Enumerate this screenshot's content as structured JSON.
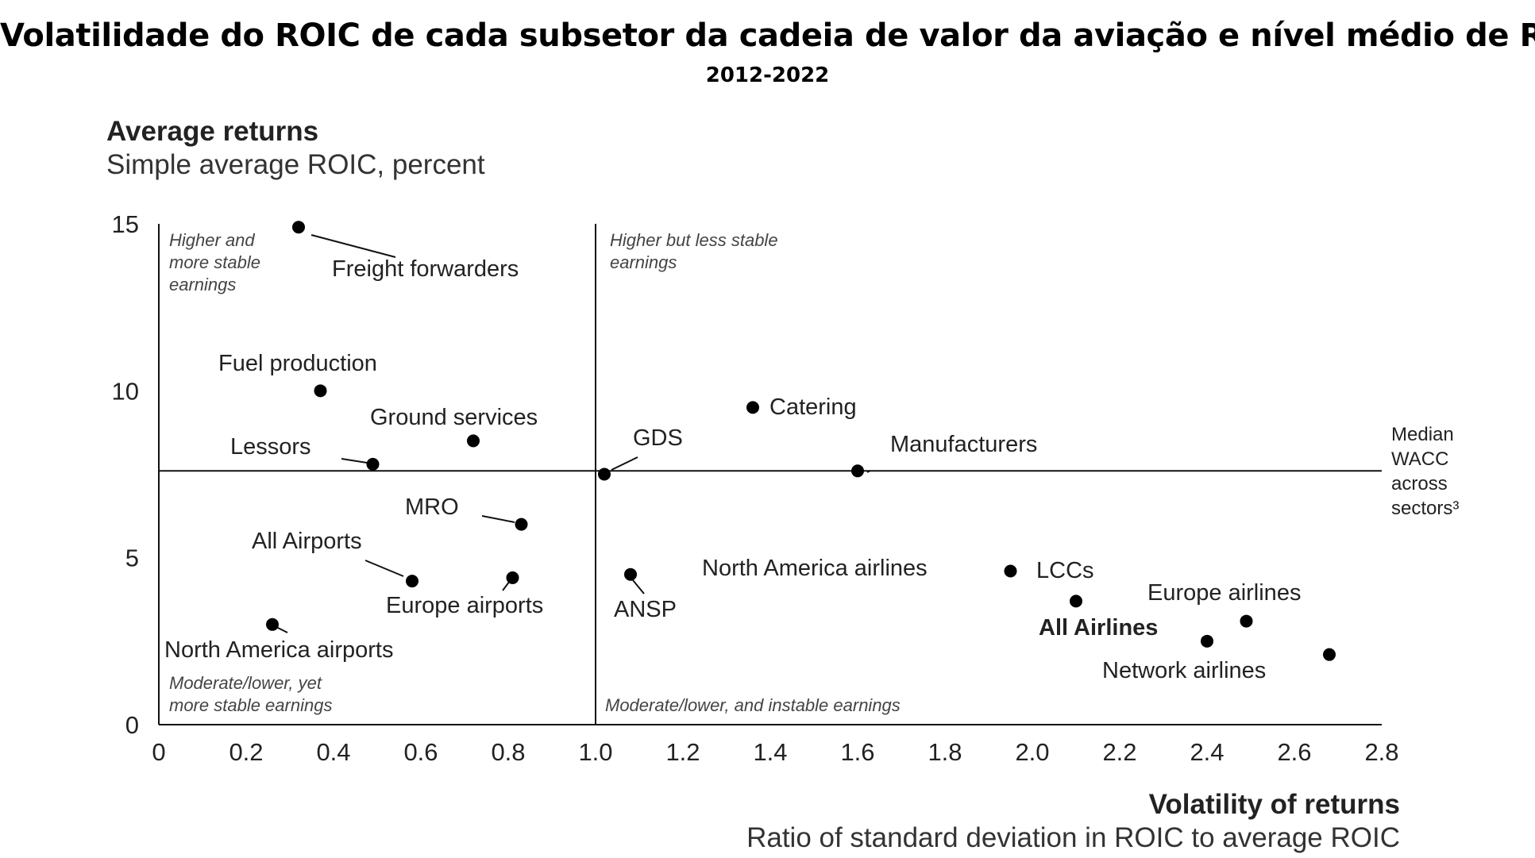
{
  "chart_data": {
    "type": "scatter",
    "title": "Volatilidade do ROIC de cada subsetor da cadeia de valor da aviação e nível médio de ROIC",
    "subtitle": "2012-2022",
    "ylabel": "Average returns",
    "ylabel_sub": "Simple average ROIC, percent",
    "xlabel": "Volatility of returns",
    "xlabel_sub": "Ratio of standard deviation in ROIC to average ROIC",
    "xlim": [
      0,
      2.8
    ],
    "ylim": [
      0,
      15
    ],
    "x_ticks": [
      "0",
      "0.2",
      "0.4",
      "0.6",
      "0.8",
      "1.0",
      "1.2",
      "1.4",
      "1.6",
      "1.8",
      "2.0",
      "2.2",
      "2.4",
      "2.6",
      "2.8"
    ],
    "y_ticks": [
      "0",
      "5",
      "10",
      "15"
    ],
    "grid": false,
    "reference_lines": {
      "vertical_x": 1.0,
      "horizontal_y": 7.6,
      "horizontal_label": [
        "Median",
        "WACC",
        "across",
        "sectors³"
      ]
    },
    "quadrant_labels": [
      [
        "Higher and",
        "more stable",
        "earnings"
      ],
      [
        "Higher but less stable",
        "earnings"
      ],
      [
        "Moderate/lower, yet",
        "more stable earnings"
      ],
      [
        "Moderate/lower, and instable earnings"
      ]
    ],
    "points": [
      {
        "label": "Freight forwarders",
        "x": 0.32,
        "y": 14.9
      },
      {
        "label": "Fuel production",
        "x": 0.37,
        "y": 10.0
      },
      {
        "label": "Ground services",
        "x": 0.72,
        "y": 8.5
      },
      {
        "label": "Lessors",
        "x": 0.49,
        "y": 7.8
      },
      {
        "label": "GDS",
        "x": 1.02,
        "y": 7.5
      },
      {
        "label": "Catering",
        "x": 1.36,
        "y": 9.5
      },
      {
        "label": "Manufacturers",
        "x": 1.6,
        "y": 7.6
      },
      {
        "label": "MRO",
        "x": 0.83,
        "y": 6.0
      },
      {
        "label": "All Airports",
        "x": 0.58,
        "y": 4.3
      },
      {
        "label": "Europe airports",
        "x": 0.81,
        "y": 4.4
      },
      {
        "label": "North America airports",
        "x": 0.26,
        "y": 3.0
      },
      {
        "label": "ANSP",
        "x": 1.08,
        "y": 4.5
      },
      {
        "label": "North America airlines",
        "x": 1.95,
        "y": 4.6
      },
      {
        "label": "LCCs",
        "x": 2.1,
        "y": 3.7
      },
      {
        "label": "All Airlines",
        "x": 2.4,
        "y": 2.5,
        "bold": true
      },
      {
        "label": "Europe airlines",
        "x": 2.49,
        "y": 3.1
      },
      {
        "label": "Network airlines",
        "x": 2.68,
        "y": 2.1
      }
    ]
  }
}
